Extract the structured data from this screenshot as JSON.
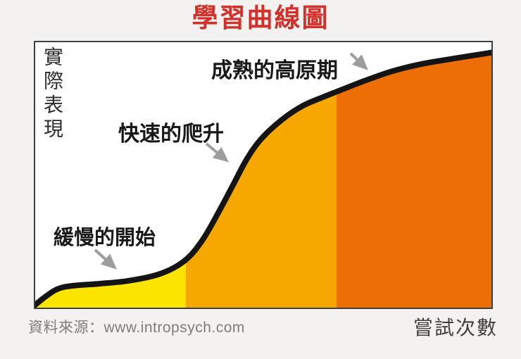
{
  "title": {
    "text": "學習曲線圖",
    "color": "#d2302a"
  },
  "chart": {
    "y_axis_label": "實際表現",
    "x_axis_label": "嘗試次數",
    "source_text": "資料來源：www.intropsych.com",
    "annotations": {
      "slow_start": "緩慢的開始",
      "rapid_climb": "快速的爬升",
      "plateau": "成熟的高原期"
    }
  },
  "chart_data": {
    "type": "area",
    "title": "學習曲線圖",
    "xlabel": "嘗試次數",
    "ylabel": "實際表現",
    "axes_numeric": false,
    "grid": false,
    "legend": "none",
    "source": "資料來源：www.intropsych.com",
    "curve": {
      "name": "learning-curve",
      "shape": "sigmoid",
      "stroke_color": "#141414",
      "stroke_width": 8,
      "points_normalized": [
        [
          0.0,
          0.01
        ],
        [
          0.023,
          0.042
        ],
        [
          0.049,
          0.07
        ],
        [
          0.08,
          0.082
        ],
        [
          0.14,
          0.09
        ],
        [
          0.2,
          0.1
        ],
        [
          0.264,
          0.122
        ],
        [
          0.307,
          0.153
        ],
        [
          0.34,
          0.196
        ],
        [
          0.371,
          0.266
        ],
        [
          0.402,
          0.36
        ],
        [
          0.433,
          0.46
        ],
        [
          0.463,
          0.557
        ],
        [
          0.494,
          0.633
        ],
        [
          0.54,
          0.707
        ],
        [
          0.586,
          0.76
        ],
        [
          0.632,
          0.794
        ],
        [
          0.663,
          0.815
        ],
        [
          0.724,
          0.856
        ],
        [
          0.785,
          0.892
        ],
        [
          0.847,
          0.918
        ],
        [
          0.923,
          0.94
        ],
        [
          1.0,
          0.961
        ]
      ]
    },
    "phases": [
      {
        "label": "緩慢的開始",
        "x_start": 0.0,
        "x_end": 0.33,
        "fill": "#fbe400"
      },
      {
        "label": "快速的爬升",
        "x_start": 0.33,
        "x_end": 0.66,
        "fill": "#f6a700"
      },
      {
        "label": "成熟的高原期",
        "x_start": 0.66,
        "x_end": 1.0,
        "fill": "#ec6e05"
      }
    ]
  }
}
